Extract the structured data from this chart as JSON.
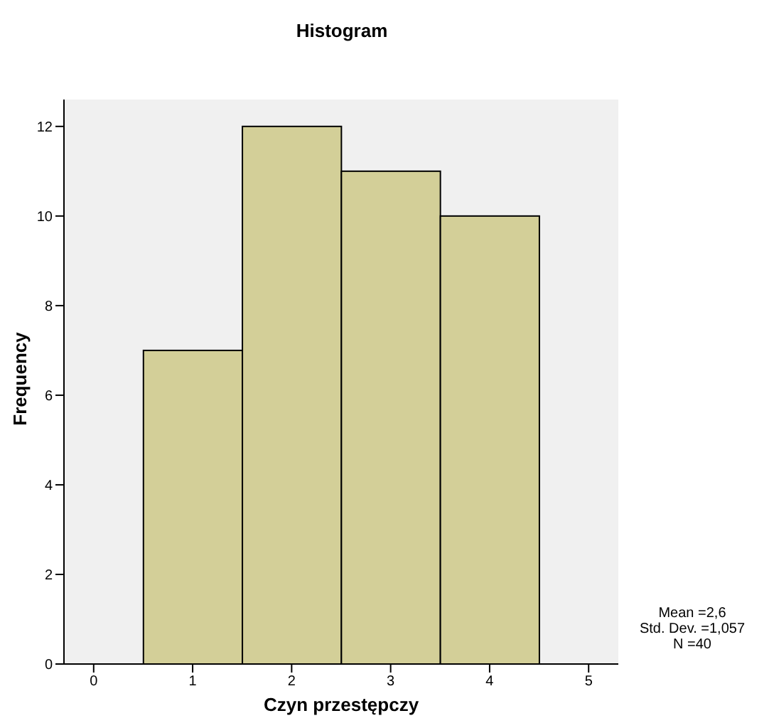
{
  "chart_data": {
    "type": "histogram",
    "title": "Histogram",
    "xlabel": "Czyn przestępczy",
    "ylabel": "Frequency",
    "bins": [
      0.5,
      1.5,
      2.5,
      3.5,
      4.5
    ],
    "values": [
      7,
      12,
      11,
      10
    ],
    "color": "#d3cf98",
    "xlim": [
      -0.3,
      5.3
    ],
    "xticks": [
      0,
      1,
      2,
      3,
      4,
      5
    ],
    "ylim": [
      0,
      12.6
    ],
    "yticks": [
      0,
      2,
      4,
      6,
      8,
      10,
      12
    ],
    "grid": false,
    "annotations": [
      "Mean =2,6",
      "Std. Dev. =1,057",
      "N =40"
    ]
  }
}
